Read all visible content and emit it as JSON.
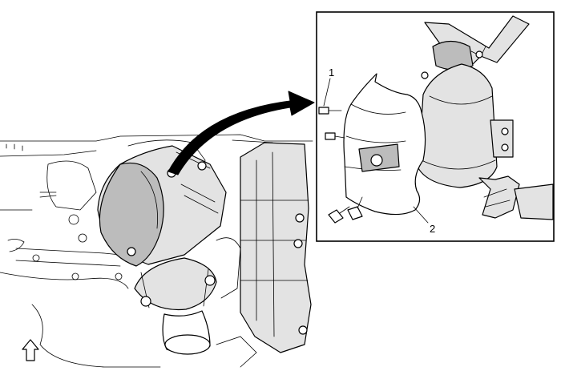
{
  "callouts": {
    "c1": "1",
    "c2": "2"
  },
  "icons": {
    "orientation": "front-arrow-icon",
    "transfer": "curved-arrow-icon"
  }
}
